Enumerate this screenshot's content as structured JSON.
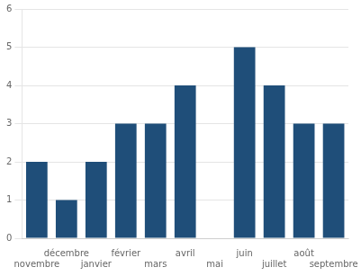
{
  "chart_data": {
    "type": "bar",
    "categories": [
      "novembre",
      "décembre",
      "janvier",
      "février",
      "mars",
      "avril",
      "mai",
      "juin",
      "juillet",
      "août",
      "septembre"
    ],
    "values": [
      2,
      1,
      2,
      3,
      3,
      4,
      0,
      5,
      4,
      3,
      3
    ],
    "color": "#1F4E79",
    "ylim": [
      0,
      6
    ],
    "yticks": [
      0,
      1,
      2,
      3,
      4,
      5,
      6
    ],
    "grid": true
  }
}
